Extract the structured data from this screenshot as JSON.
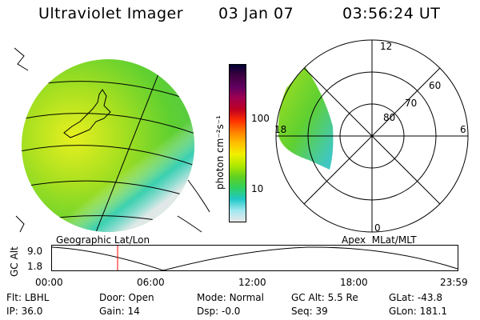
{
  "header": {
    "instrument": "Ultraviolet Imager",
    "date": "03 Jan 07",
    "time": "03:56:24 UT"
  },
  "colorbar": {
    "unit_label": "photon cm⁻²s⁻¹",
    "ticks": [
      "100",
      "10"
    ],
    "colors": [
      "#000033",
      "#400040",
      "#600060",
      "#a00050",
      "#c00020",
      "#ff3000",
      "#ff8000",
      "#ffc000",
      "#f0f000",
      "#b0e800",
      "#60d020",
      "#30d060",
      "#20c8c8",
      "#a0e8f0",
      "#e8e8e8"
    ]
  },
  "left_map": {
    "label": "Geographic Lat/Lon"
  },
  "right_map": {
    "label": "Apex  MLat/MLT",
    "mlt_labels": {
      "top": "12",
      "left": "18",
      "right": "6",
      "bottom": "0"
    },
    "lat_labels": [
      "60",
      "70",
      "80"
    ]
  },
  "timeline": {
    "axis_label": "GC Alt",
    "y_ticks": [
      "9.0",
      "1.8"
    ],
    "x_ticks": [
      "00:00",
      "06:00",
      "12:00",
      "18:00",
      "23:59"
    ],
    "marker_color": "#ff0000"
  },
  "info": {
    "row1": [
      {
        "key": "Flt:",
        "value": "LBHL"
      },
      {
        "key": "Door:",
        "value": "Open"
      },
      {
        "key": "Mode:",
        "value": "Normal"
      },
      {
        "key": "GC Alt:",
        "value": "5.5 Re"
      },
      {
        "key": "GLat:",
        "value": "-43.8"
      }
    ],
    "row2": [
      {
        "key": "IP:",
        "value": "36.0"
      },
      {
        "key": "Gain:",
        "value": "14"
      },
      {
        "key": "Dsp:",
        "value": "-0.0"
      },
      {
        "key": "Seq:",
        "value": "39"
      },
      {
        "key": "GLon:",
        "value": "181.1"
      }
    ]
  }
}
